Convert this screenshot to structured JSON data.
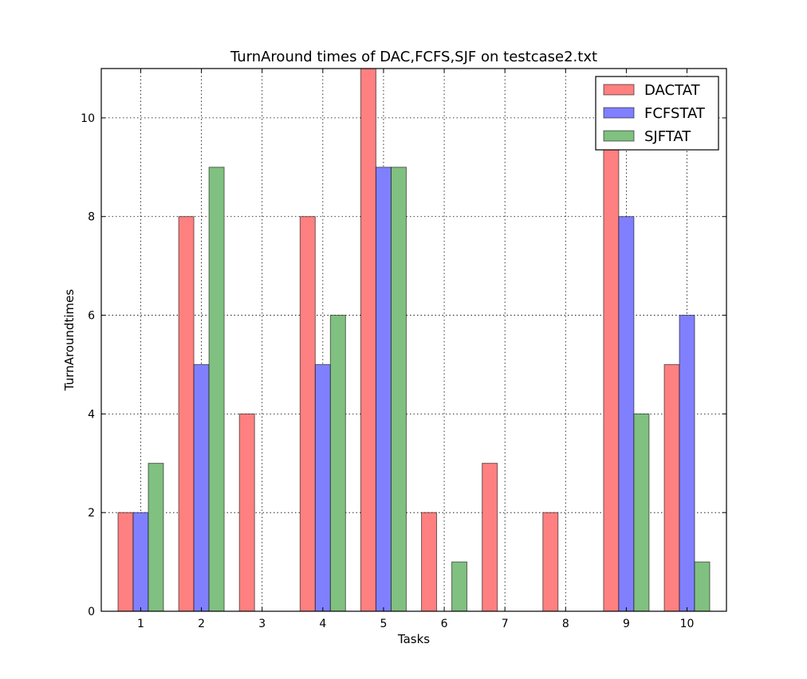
{
  "chart_data": {
    "type": "bar",
    "title": "TurnAround times of DAC,FCFS,SJF on testcase2.txt",
    "xlabel": "Tasks",
    "ylabel": "TurnAroundtimes",
    "categories": [
      "1",
      "2",
      "3",
      "4",
      "5",
      "6",
      "7",
      "8",
      "9",
      "10"
    ],
    "ylim": [
      0,
      11
    ],
    "yticks": [
      0,
      2,
      4,
      6,
      8,
      10
    ],
    "grid": true,
    "legend_position": "top-right",
    "series": [
      {
        "name": "DACTAT",
        "color": "#ff8080",
        "values": [
          2,
          8,
          4,
          8,
          11,
          2,
          3,
          2,
          9.5,
          5
        ]
      },
      {
        "name": "FCFSTAT",
        "color": "#8080ff",
        "values": [
          2,
          5,
          0,
          5,
          9,
          0,
          0,
          0,
          8,
          6
        ]
      },
      {
        "name": "SJFTAT",
        "color": "#80c080",
        "values": [
          3,
          9,
          0,
          6,
          9,
          1,
          0,
          0,
          4,
          1
        ]
      }
    ]
  }
}
